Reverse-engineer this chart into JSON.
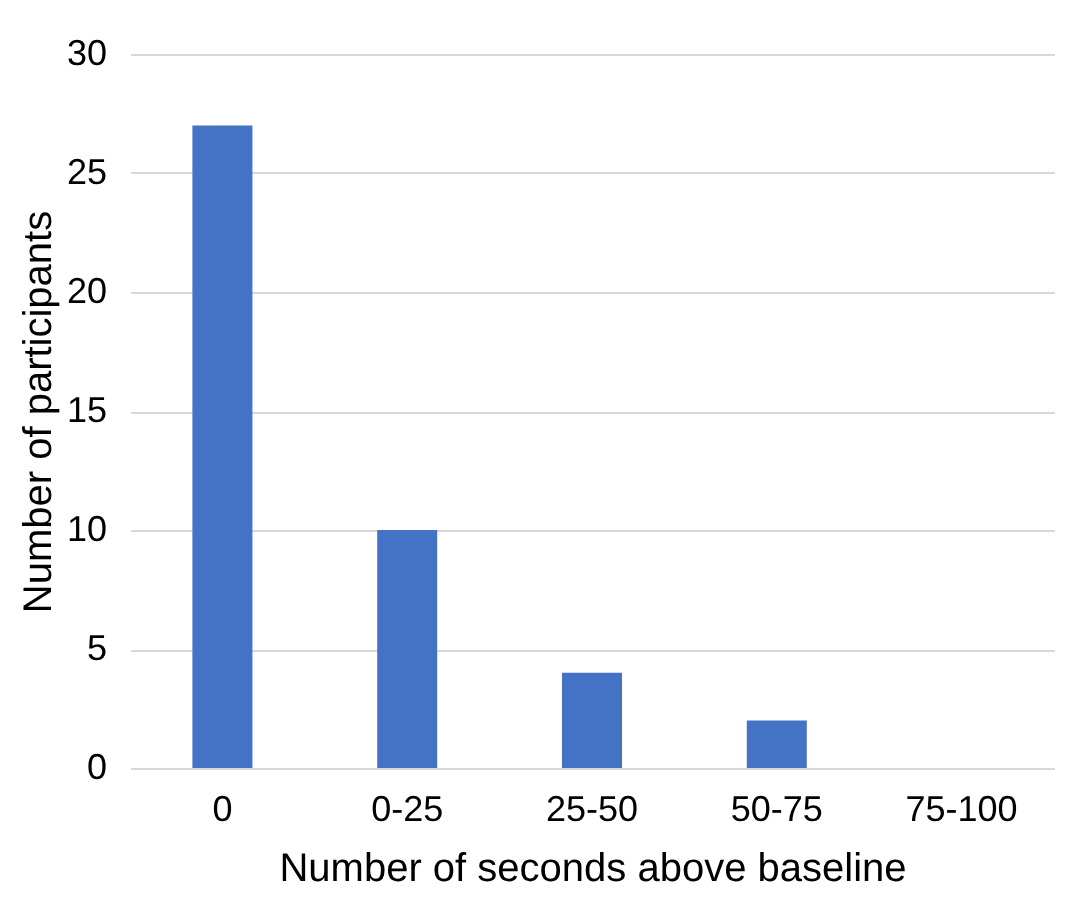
{
  "chart_data": {
    "type": "bar",
    "xlabel": "Number of seconds above baseline",
    "ylabel": "Number of participants",
    "categories": [
      "0",
      "0-25",
      "25-50",
      "50-75",
      "75-100"
    ],
    "values": [
      27,
      10,
      4,
      2,
      0
    ],
    "color": "#4472c4",
    "ylim": [
      0,
      30
    ],
    "yticks": [
      0,
      5,
      10,
      15,
      20,
      25,
      30
    ],
    "grid": "y"
  }
}
